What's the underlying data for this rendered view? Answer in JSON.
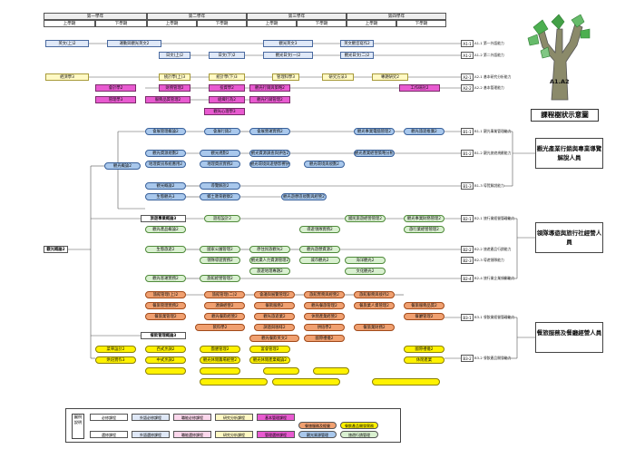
{
  "header": {
    "years": [
      "第一學年",
      "第二學年",
      "第三學年",
      "第四學年"
    ],
    "semesters": [
      "上學期",
      "下學期",
      "上學期",
      "下學期",
      "上學期",
      "下學期",
      "上學期",
      "下學期"
    ]
  },
  "title": "課程樹狀示意圖",
  "tree_label": "A1.A2",
  "courses": [
    "英文(上)2",
    "運動與觀光英文2",
    "觀光英文3",
    "英文觀音寫作2",
    "日文(上)2",
    "日文(下)2",
    "觀光日文(一)2",
    "觀光日文(二)2",
    "經濟學3",
    "統計學(上)3",
    "統計學(下)3",
    "管理科學3",
    "研究方法3",
    "專題研究2",
    "會計學2",
    "財務管理2",
    "投資學2",
    "觀光行銷與策略2",
    "工作研討2",
    "管理學3",
    "服務品質管理2",
    "組織行為2",
    "觀光行銷管理2",
    "觀光心理學3",
    "會展管理概論2",
    "會展行銷2",
    "會展營運實務2",
    "觀光事業電腦管理2",
    "觀光旅遊推廣2",
    "觀光資源規劃2",
    "觀光規劃2",
    "觀光資源調查與評估2",
    "觀光產業經營策略分析2",
    "地理資訊系統應用2",
    "地理資訊實務2",
    "觀光環境與遊憩影響評估2",
    "觀光環境與規劃2",
    "觀光概論2",
    "導覽解說2",
    "導覽解說實務2",
    "生態觀光3",
    "鄉土教育觀察2",
    "觀光遊憩區規劃與經營2",
    "旅遊事業概論3",
    "遊程設計2",
    "國民旅遊經營管理2",
    "觀光事業財務管理2",
    "觀光產品概論2",
    "導遊領隊實務2",
    "旅行業經營管理2",
    "生態旅遊2",
    "休閒遊憩管理2",
    "國家公園管理2",
    "原住民族觀光2",
    "觀光遊憩資源2",
    "旅遊地理2",
    "領隊導遊實務2",
    "觀光業人力資源管理2",
    "城市觀光2",
    "海洋觀光2",
    "觀光客運實務2",
    "旅遊地理專題2",
    "旅館經營管理2",
    "文化觀光2",
    "餐飲管理概論3",
    "旅館管理(上)2",
    "旅館管理(二)2",
    "會議與展覽管理2",
    "旅館實務與經營2",
    "旅館服務與接待2",
    "餐旅管理實務2",
    "連鎖經營2",
    "餐飲服務2",
    "觀光餐旅管理2",
    "餐旅業人資管理2",
    "餐旅服務品質2",
    "餐旅業管理2",
    "觀光餐飲經營2",
    "觀光旅遊業2",
    "休閒產業經營2",
    "餐廳管理2",
    "飲料學2",
    "調酒與咖啡2",
    "烘焙學2",
    "餐旅業財務2",
    "觀光餐飲英文2",
    "國際禮儀2",
    "觀光餐旅行銷2",
    "餐旅策略管理2",
    "會展管理2",
    "飲食文化2",
    "營養與膳食2",
    "健康飲食2",
    "食品衛生安全2",
    "菜單設計2",
    "烘焙實作3",
    "中式烹調2",
    "西式烹調2",
    "團膳管理2",
    "宴會管理2",
    "觀光休閒農場經營2",
    "觀光休閒產業概論2",
    "休閒產業"
  ],
  "abilities": [
    "A1-1 第一外語能力",
    "A1-2 第二外語能力",
    "A2-1 基本研究分析能力",
    "A2-2 基本管理能力",
    "B1-1 觀光事業管理能力",
    "B1-2 觀光旅遊規劃能力",
    "B1-3 導覽解說能力",
    "B2-1 旅行業經營管理能力",
    "B2-2 旅遊產品行銷能力",
    "B2-3 導遊領隊能力",
    "B2-4 旅行業企業規劃能力",
    "B3-1 餐飲業經營管理能力",
    "B3-2 餐飲產品開發能力"
  ],
  "outcomes": [
    "觀光產業行銷與專業導覽解說人員",
    "領隊導遊與旅行社經營人員",
    "餐旅服務及餐廳經營人員"
  ],
  "legend_title": "圖例說明",
  "legend": [
    "必修課程",
    "外語必修課程",
    "職能必修課程",
    "研究分析課程",
    "基本管理課程",
    "選修課程",
    "外語選修課程",
    "職能選修課程",
    "研究分析課程",
    "管理選修課程",
    "觀光資源管理",
    "旅遊行銷管理",
    "餐旅服務及經營",
    "餐飲產品開發實務"
  ],
  "colors": {
    "required": "#ffffff",
    "language": "#dfe8f7",
    "career": "#fcd7ec",
    "research": "#fff9c4",
    "management": "#e85ad0",
    "tourism": "#a9c8ec",
    "travel": "#d9f0d0",
    "hospitality": "#f0a070",
    "food": "#fff200"
  }
}
